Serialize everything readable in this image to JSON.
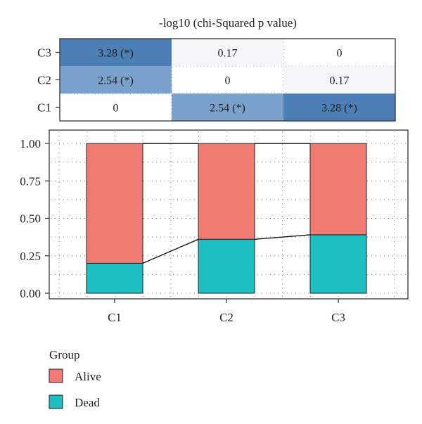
{
  "chart_data": [
    {
      "type": "heatmap",
      "title": "-log10 (chi-Squared p value)",
      "rows": [
        "C3",
        "C2",
        "C1"
      ],
      "columns": [
        "C1",
        "C2",
        "C3"
      ],
      "cells": [
        {
          "row": "C3",
          "col": "C1",
          "value": 3.28,
          "label": "3.28 (*)",
          "color": "#4b7fb6"
        },
        {
          "row": "C3",
          "col": "C2",
          "value": 0.17,
          "label": "0.17",
          "color": "#f5f6f7"
        },
        {
          "row": "C3",
          "col": "C3",
          "value": 0,
          "label": "0",
          "color": "#ffffff"
        },
        {
          "row": "C2",
          "col": "C1",
          "value": 2.54,
          "label": "2.54 (*)",
          "color": "#7aa1cb"
        },
        {
          "row": "C2",
          "col": "C2",
          "value": 0,
          "label": "0",
          "color": "#ffffff"
        },
        {
          "row": "C2",
          "col": "C3",
          "value": 0.17,
          "label": "0.17",
          "color": "#f5f6f7"
        },
        {
          "row": "C1",
          "col": "C1",
          "value": 0,
          "label": "0",
          "color": "#ffffff"
        },
        {
          "row": "C1",
          "col": "C2",
          "value": 2.54,
          "label": "2.54 (*)",
          "color": "#7aa1cb"
        },
        {
          "row": "C1",
          "col": "C3",
          "value": 3.28,
          "label": "3.28 (*)",
          "color": "#4b7fb6"
        }
      ]
    },
    {
      "type": "bar",
      "stacked": true,
      "categories": [
        "C1",
        "C2",
        "C3"
      ],
      "series": [
        {
          "name": "Dead",
          "values": [
            0.2,
            0.36,
            0.39
          ],
          "color": "#1ebfc3"
        },
        {
          "name": "Alive",
          "values": [
            0.8,
            0.64,
            0.61
          ],
          "color": "#f07b72"
        }
      ],
      "ylim": [
        0,
        1
      ],
      "yticks": [
        "0.00",
        "0.25",
        "0.50",
        "0.75",
        "1.00"
      ],
      "ytick_values": [
        0,
        0.25,
        0.5,
        0.75,
        1.0
      ],
      "connector_line": true,
      "grid": "dotted",
      "legend": {
        "title": "Group",
        "position": "bottom-left",
        "entries": [
          {
            "label": "Alive",
            "color": "#f07b72"
          },
          {
            "label": "Dead",
            "color": "#1ebfc3"
          }
        ]
      }
    }
  ]
}
